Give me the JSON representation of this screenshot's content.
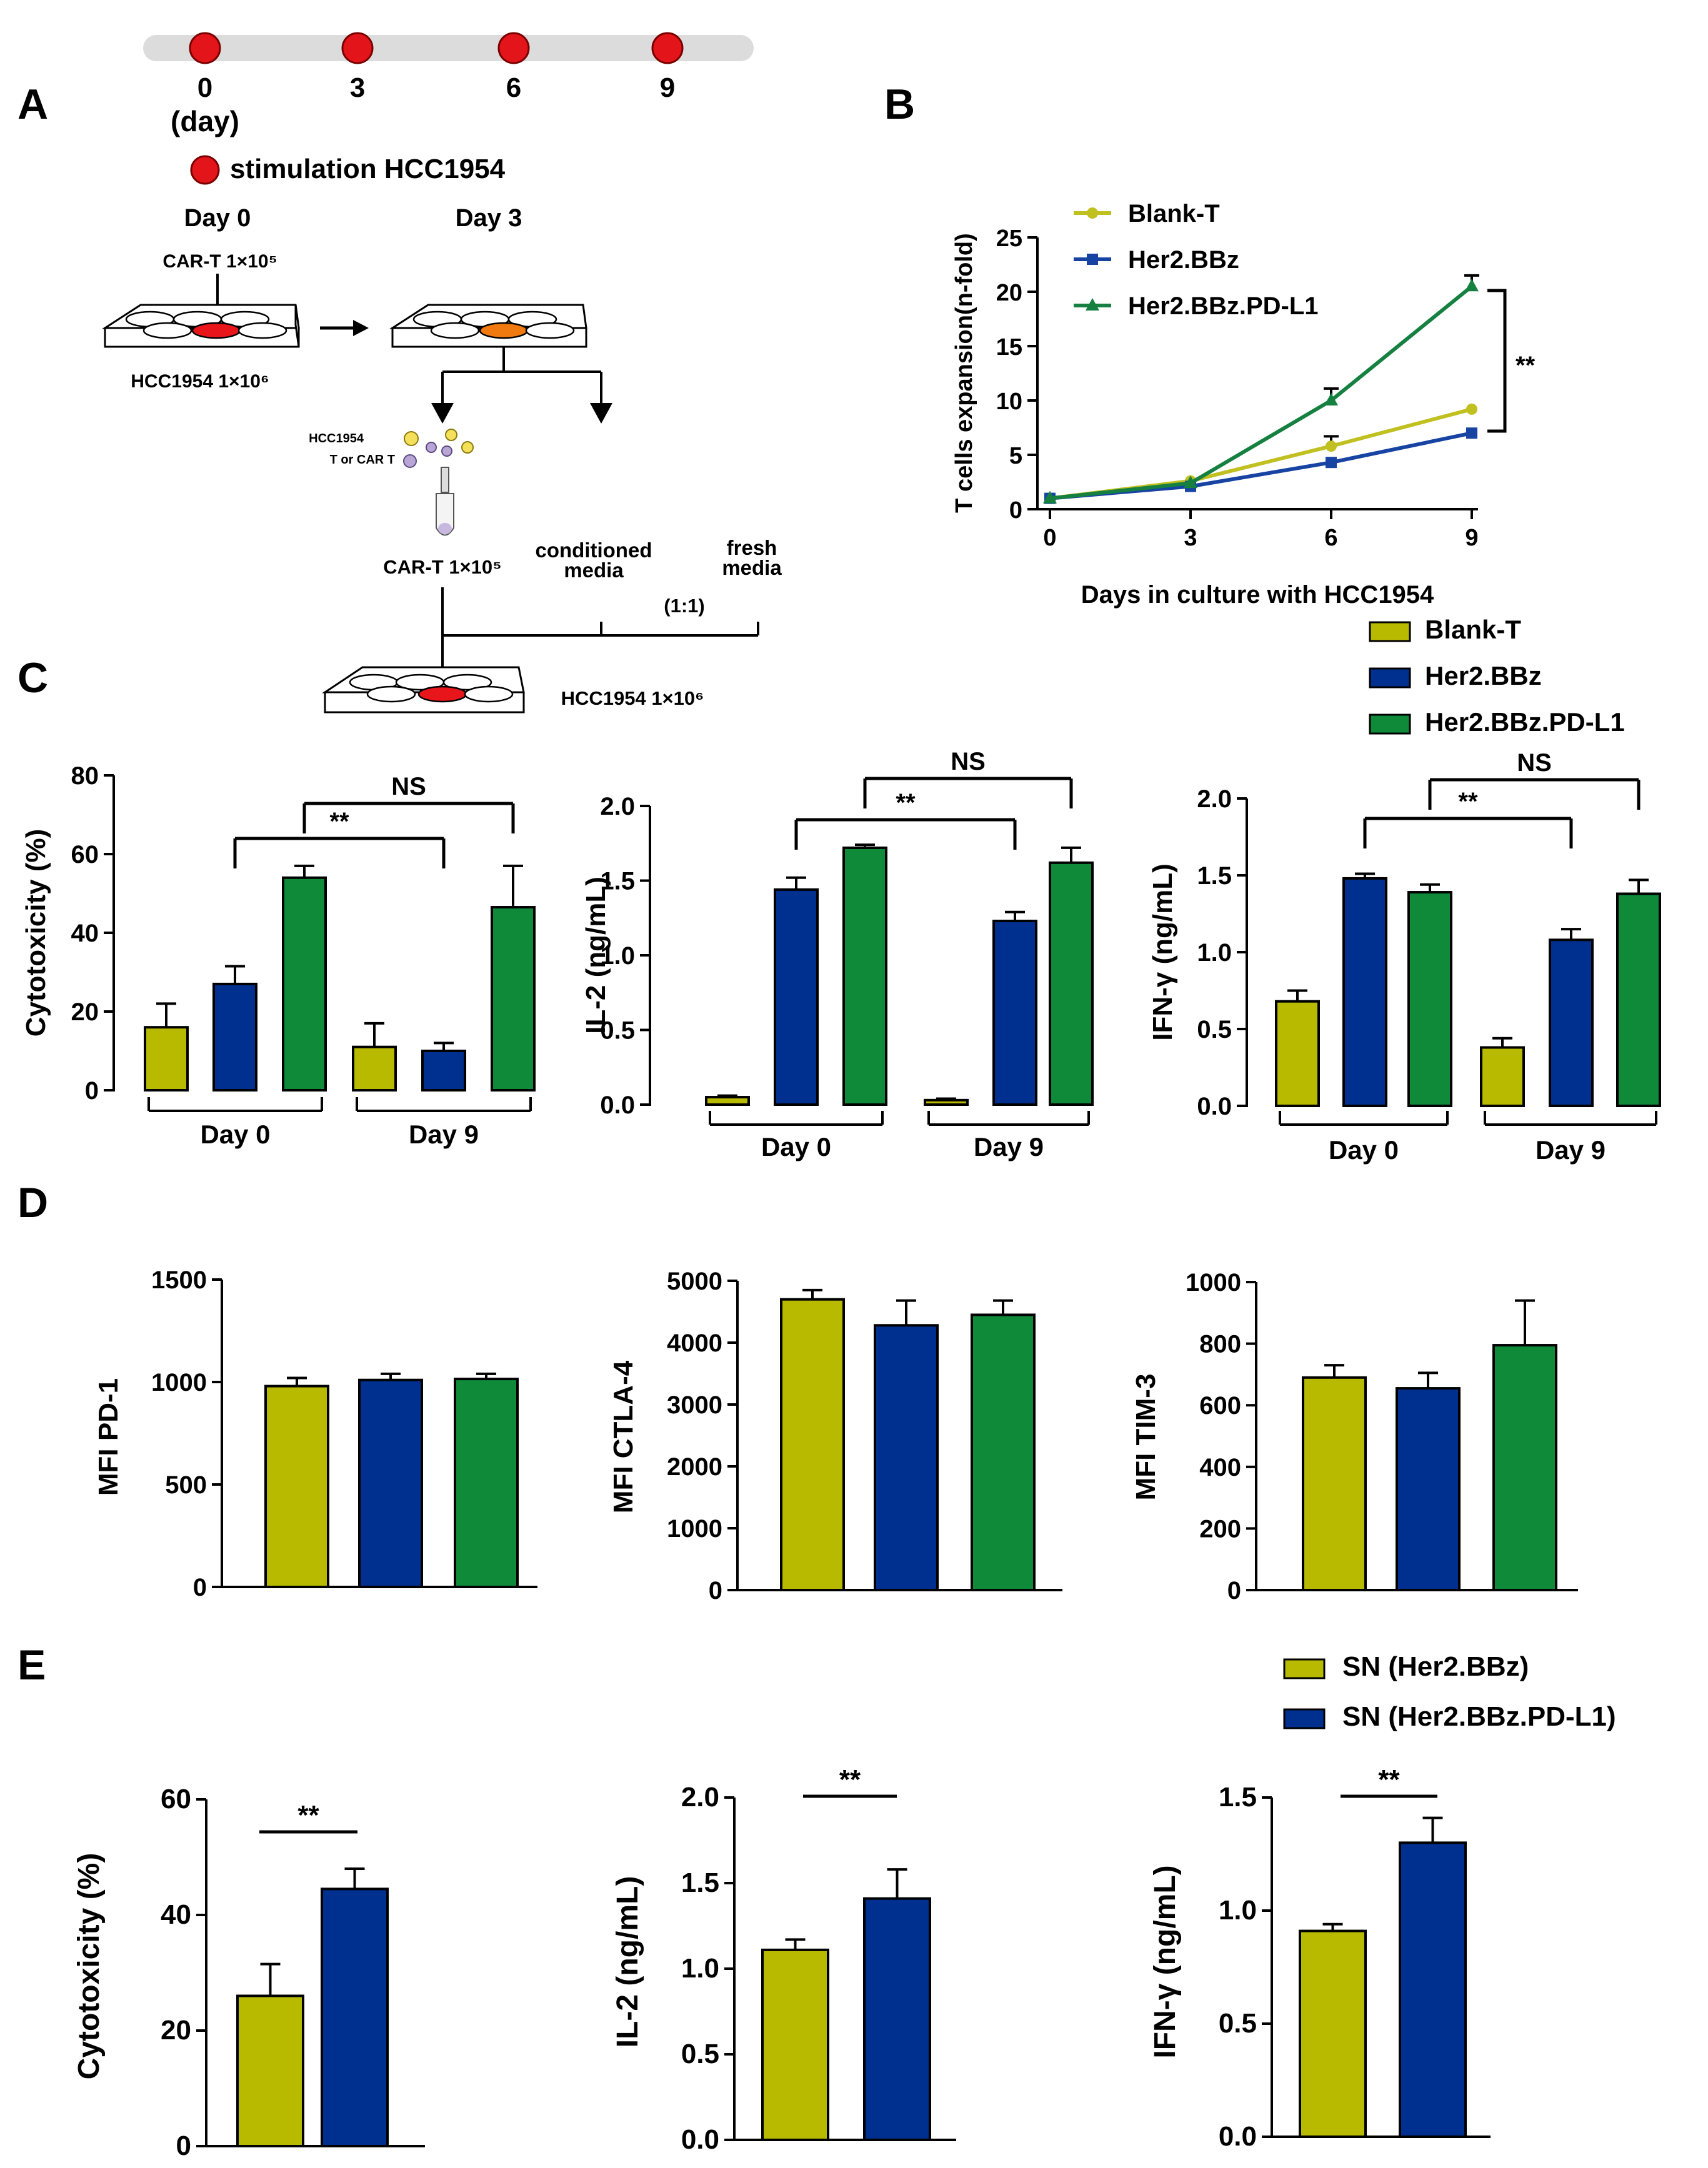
{
  "colors": {
    "olive": "#b8ba00",
    "blue": "#00308f",
    "green": "#0e8a39",
    "timeline_bar": "#dcdcdc",
    "stim_red": "#e3151b",
    "well_red": "#e8161b",
    "well_orange": "#f07a10",
    "line_olive": "#c0c020",
    "line_blue": "#1744a3",
    "line_green": "#158040"
  },
  "panel_labels": {
    "a": "A",
    "b": "B",
    "c": "C",
    "d": "D",
    "e": "E"
  },
  "timeline": {
    "ticks": [
      "0",
      "3",
      "6",
      "9"
    ],
    "unit": "(day)",
    "legend": "stimulation HCC1954"
  },
  "schematic": {
    "day0": "Day 0",
    "day3": "Day 3",
    "cart_top": "CAR-T 1×10⁵",
    "hcc_top": "HCC1954 1×10⁶",
    "cell_hcc": "HCC1954",
    "cell_t": "T or CAR T",
    "cart_mid": "CAR-T 1×10⁵",
    "cond_line1": "conditioned",
    "cond_line2": "media",
    "fresh_line1": "fresh",
    "fresh_line2": "media",
    "ratio": "(1:1)",
    "hcc_bottom": "HCC1954 1×10⁶",
    "icon": "multiwell-plate-icon"
  },
  "panel_c_legend": [
    "Blank-T",
    "Her2.BBz",
    "Her2.BBz.PD-L1"
  ],
  "panel_e_legend": [
    "SN (Her2.BBz)",
    "SN (Her2.BBz.PD-L1)"
  ],
  "chart_data": [
    {
      "id": "B",
      "type": "line",
      "x": [
        0,
        3,
        6,
        9
      ],
      "xlabel": "Days in culture with HCC1954",
      "ylabel": "T cells expansion(n-fold)",
      "ylim": [
        0,
        25
      ],
      "yticks": [
        0,
        5,
        10,
        15,
        20,
        25
      ],
      "series": [
        {
          "name": "Blank-T",
          "values": [
            1.0,
            2.6,
            5.8,
            9.2
          ],
          "errors": [
            0,
            0,
            0.9,
            0
          ]
        },
        {
          "name": "Her2.BBz",
          "values": [
            1.0,
            2.1,
            4.3,
            7.0
          ],
          "errors": [
            0,
            0,
            0,
            0
          ]
        },
        {
          "name": "Her2.BBz.PD-L1",
          "values": [
            1.0,
            2.4,
            10.0,
            20.5
          ],
          "errors": [
            0,
            0,
            1.1,
            1.0
          ]
        }
      ],
      "legend_position": "top-left",
      "significance": "**"
    },
    {
      "id": "C1",
      "type": "bar",
      "ylabel": "Cytotoxicity (%)",
      "ylim": [
        0,
        80
      ],
      "yticks": [
        0,
        20,
        40,
        60,
        80
      ],
      "groups": [
        "Day 0",
        "Day 9"
      ],
      "series": [
        {
          "name": "Blank-T",
          "values": [
            16,
            11
          ],
          "errors": [
            6,
            6
          ]
        },
        {
          "name": "Her2.BBz",
          "values": [
            27,
            10
          ],
          "errors": [
            4.5,
            2
          ]
        },
        {
          "name": "Her2.BBz.PD-L1",
          "values": [
            54,
            46.5
          ],
          "errors": [
            3,
            10.5
          ]
        }
      ],
      "brackets": [
        "**",
        "NS"
      ]
    },
    {
      "id": "C2",
      "type": "bar",
      "ylabel": "IL-2 (ng/mL)",
      "ylim": [
        0,
        2.0
      ],
      "yticks": [
        "0.0",
        "0.5",
        "1.0",
        "1.5",
        "2.0"
      ],
      "groups": [
        "Day 0",
        "Day 9"
      ],
      "series": [
        {
          "name": "Blank-T",
          "values": [
            0.05,
            0.03
          ],
          "errors": [
            0.01,
            0.01
          ]
        },
        {
          "name": "Her2.BBz",
          "values": [
            1.44,
            1.23
          ],
          "errors": [
            0.08,
            0.06
          ]
        },
        {
          "name": "Her2.BBz.PD-L1",
          "values": [
            1.72,
            1.62
          ],
          "errors": [
            0.02,
            0.1
          ]
        }
      ],
      "brackets": [
        "**",
        "NS"
      ]
    },
    {
      "id": "C3",
      "type": "bar",
      "ylabel": "IFN-γ (ng/mL)",
      "ylim": [
        0,
        2.0
      ],
      "yticks": [
        "0.0",
        "0.5",
        "1.0",
        "1.5",
        "2.0"
      ],
      "groups": [
        "Day 0",
        "Day 9"
      ],
      "series": [
        {
          "name": "Blank-T",
          "values": [
            0.68,
            0.38
          ],
          "errors": [
            0.07,
            0.06
          ]
        },
        {
          "name": "Her2.BBz",
          "values": [
            1.48,
            1.08
          ],
          "errors": [
            0.03,
            0.07
          ]
        },
        {
          "name": "Her2.BBz.PD-L1",
          "values": [
            1.39,
            1.38
          ],
          "errors": [
            0.05,
            0.09
          ]
        }
      ],
      "brackets": [
        "**",
        "NS"
      ]
    },
    {
      "id": "D1",
      "type": "bar",
      "ylabel": "MFI PD-1",
      "ylim": [
        0,
        1500
      ],
      "yticks": [
        0,
        500,
        1000,
        1500
      ],
      "series": [
        {
          "name": "Blank-T",
          "values": [
            980
          ],
          "errors": [
            40
          ]
        },
        {
          "name": "Her2.BBz",
          "values": [
            1010
          ],
          "errors": [
            30
          ]
        },
        {
          "name": "Her2.BBz.PD-L1",
          "values": [
            1015
          ],
          "errors": [
            25
          ]
        }
      ]
    },
    {
      "id": "D2",
      "type": "bar",
      "ylabel": "MFI CTLA-4",
      "ylim": [
        0,
        5000
      ],
      "yticks": [
        0,
        1000,
        2000,
        3000,
        4000,
        5000
      ],
      "series": [
        {
          "name": "Blank-T",
          "values": [
            4700
          ],
          "errors": [
            150
          ]
        },
        {
          "name": "Her2.BBz",
          "values": [
            4280
          ],
          "errors": [
            400
          ]
        },
        {
          "name": "Her2.BBz.PD-L1",
          "values": [
            4450
          ],
          "errors": [
            230
          ]
        }
      ]
    },
    {
      "id": "D3",
      "type": "bar",
      "ylabel": "MFI TIM-3",
      "ylim": [
        0,
        1000
      ],
      "yticks": [
        0,
        200,
        400,
        600,
        800,
        1000
      ],
      "series": [
        {
          "name": "Blank-T",
          "values": [
            690
          ],
          "errors": [
            40
          ]
        },
        {
          "name": "Her2.BBz",
          "values": [
            655
          ],
          "errors": [
            50
          ]
        },
        {
          "name": "Her2.BBz.PD-L1",
          "values": [
            795
          ],
          "errors": [
            145
          ]
        }
      ]
    },
    {
      "id": "E1",
      "type": "bar",
      "ylabel": "Cytotoxicity (%)",
      "ylim": [
        0,
        60
      ],
      "yticks": [
        0,
        20,
        40,
        60
      ],
      "series": [
        {
          "name": "SN (Her2.BBz)",
          "values": [
            26
          ],
          "errors": [
            5.5
          ]
        },
        {
          "name": "SN (Her2.BBz.PD-L1)",
          "values": [
            44.5
          ],
          "errors": [
            3.5
          ]
        }
      ],
      "significance": "**"
    },
    {
      "id": "E2",
      "type": "bar",
      "ylabel": "IL-2 (ng/mL)",
      "ylim": [
        0,
        2.0
      ],
      "yticks": [
        "0.0",
        "0.5",
        "1.0",
        "1.5",
        "2.0"
      ],
      "series": [
        {
          "name": "SN (Her2.BBz)",
          "values": [
            1.11
          ],
          "errors": [
            0.06
          ]
        },
        {
          "name": "SN (Her2.BBz.PD-L1)",
          "values": [
            1.41
          ],
          "errors": [
            0.17
          ]
        }
      ],
      "significance": "**"
    },
    {
      "id": "E3",
      "type": "bar",
      "ylabel": "IFN-γ (ng/mL)",
      "ylim": [
        0,
        1.5
      ],
      "yticks": [
        "0.0",
        "0.5",
        "1.0",
        "1.5"
      ],
      "series": [
        {
          "name": "SN (Her2.BBz)",
          "values": [
            0.91
          ],
          "errors": [
            0.03
          ]
        },
        {
          "name": "SN (Her2.BBz.PD-L1)",
          "values": [
            1.3
          ],
          "errors": [
            0.11
          ]
        }
      ],
      "significance": "**"
    }
  ]
}
